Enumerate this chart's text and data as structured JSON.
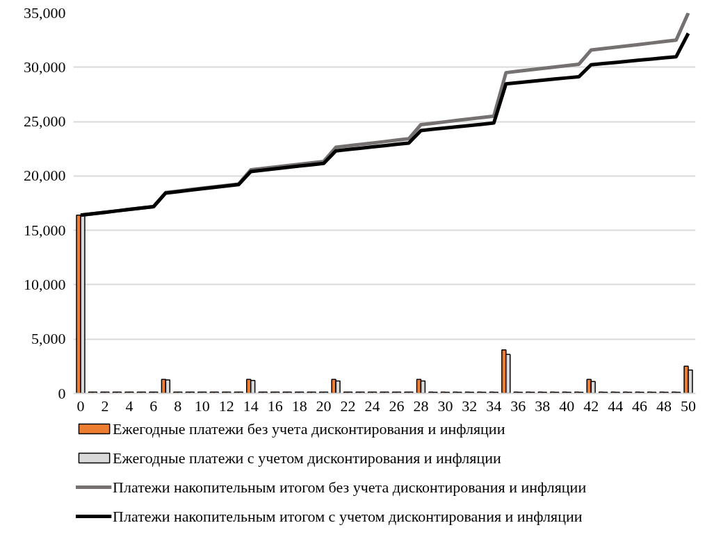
{
  "chart_data": {
    "type": "bar",
    "x": [
      0,
      1,
      2,
      3,
      4,
      5,
      6,
      7,
      8,
      9,
      10,
      11,
      12,
      13,
      14,
      15,
      16,
      17,
      18,
      19,
      20,
      21,
      22,
      23,
      24,
      25,
      26,
      27,
      28,
      29,
      30,
      31,
      32,
      33,
      34,
      35,
      36,
      37,
      38,
      39,
      40,
      41,
      42,
      43,
      44,
      45,
      46,
      47,
      48,
      49,
      50
    ],
    "xlim": [
      -0.6,
      50.6
    ],
    "xticks": [
      0,
      2,
      4,
      6,
      8,
      10,
      12,
      14,
      16,
      18,
      20,
      22,
      24,
      26,
      28,
      30,
      32,
      34,
      36,
      38,
      40,
      42,
      44,
      46,
      48,
      50
    ],
    "series": [
      {
        "name": "Ежегодные платежи без учета дисконтирования и инфляции",
        "color": "#ed7d31",
        "values": [
          16400,
          130,
          130,
          130,
          130,
          130,
          130,
          1300,
          130,
          130,
          130,
          130,
          130,
          130,
          1300,
          130,
          130,
          130,
          130,
          130,
          130,
          1300,
          130,
          130,
          130,
          130,
          130,
          130,
          1300,
          130,
          130,
          130,
          130,
          130,
          130,
          4000,
          130,
          130,
          130,
          130,
          130,
          130,
          1300,
          130,
          130,
          130,
          130,
          130,
          130,
          130,
          2500
        ]
      },
      {
        "name": "Ежегодные платежи с учетом дисконтирования и инфляции",
        "color": "#d9d9d9",
        "values": [
          16400,
          130,
          130,
          130,
          130,
          130,
          130,
          1250,
          130,
          130,
          130,
          130,
          130,
          130,
          1200,
          125,
          125,
          125,
          125,
          125,
          125,
          1150,
          120,
          120,
          120,
          120,
          120,
          120,
          1150,
          115,
          115,
          115,
          115,
          115,
          115,
          3600,
          110,
          110,
          110,
          110,
          110,
          110,
          1100,
          105,
          105,
          105,
          105,
          105,
          105,
          105,
          2150
        ]
      },
      {
        "name": "Платежи накопительным итогом без учета дисконтирования и инфляции",
        "type": "line",
        "color": "#767171",
        "values": [
          16400,
          16530,
          16660,
          16790,
          16920,
          17050,
          17180,
          18480,
          18610,
          18740,
          18870,
          19000,
          19130,
          19260,
          20560,
          20690,
          20820,
          20950,
          21080,
          21210,
          21340,
          22640,
          22770,
          22900,
          23030,
          23160,
          23290,
          23420,
          24720,
          24850,
          24980,
          25110,
          25240,
          25370,
          25500,
          29500,
          29630,
          29760,
          29890,
          30020,
          30150,
          30280,
          31580,
          31710,
          31840,
          31970,
          32100,
          32230,
          32360,
          32490,
          34990
        ]
      },
      {
        "name": "Платежи накопительным итогом с учетом дисконтирования и инфляции",
        "type": "line",
        "color": "#000000",
        "values": [
          16400,
          16530,
          16660,
          16790,
          16920,
          17050,
          17180,
          18430,
          18560,
          18690,
          18820,
          18950,
          19080,
          19210,
          20410,
          20535,
          20660,
          20785,
          20910,
          21035,
          21160,
          22310,
          22430,
          22550,
          22670,
          22790,
          22910,
          23030,
          24180,
          24295,
          24410,
          24525,
          24640,
          24755,
          24870,
          28470,
          28580,
          28690,
          28800,
          28910,
          29020,
          29130,
          30230,
          30335,
          30440,
          30545,
          30650,
          30755,
          30860,
          30965,
          33115
        ]
      }
    ],
    "ylim": [
      0,
      35000
    ],
    "yticks": [
      {
        "value": 0,
        "label": "0"
      },
      {
        "value": 5000,
        "label": "5,000"
      },
      {
        "value": 10000,
        "label": "10,000"
      },
      {
        "value": 15000,
        "label": "15,000"
      },
      {
        "value": 20000,
        "label": "20,000"
      },
      {
        "value": 25000,
        "label": "25,000"
      },
      {
        "value": 30000,
        "label": "30,000"
      },
      {
        "value": 35000,
        "label": "35,000"
      }
    ],
    "grid": "y",
    "legend": "bottom",
    "line_style": "solid",
    "marker": "none"
  }
}
